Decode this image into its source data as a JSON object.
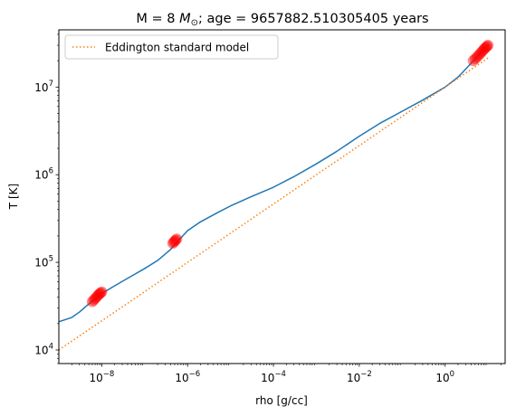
{
  "chart_data": {
    "type": "line",
    "title_prefix": "M = 8 ",
    "title_symbol": "M",
    "title_symbol_sub": "⊙",
    "title_suffix": "; age = 9657882.510305405 years",
    "xlabel": "rho [g/cc]",
    "ylabel": "T [K]",
    "xscale": "log",
    "yscale": "log",
    "xlim": [
      1e-09,
      25
    ],
    "ylim": [
      7000,
      45000000
    ],
    "grid": false,
    "legend_position": "top-left",
    "x_ticks": [
      {
        "value": 1e-08,
        "base": "10",
        "exp": "−8"
      },
      {
        "value": 1e-06,
        "base": "10",
        "exp": "−6"
      },
      {
        "value": 0.0001,
        "base": "10",
        "exp": "−4"
      },
      {
        "value": 0.01,
        "base": "10",
        "exp": "−2"
      },
      {
        "value": 1,
        "base": "10",
        "exp": "0"
      }
    ],
    "y_ticks": [
      {
        "value": 10000,
        "base": "10",
        "exp": "4"
      },
      {
        "value": 100000,
        "base": "10",
        "exp": "5"
      },
      {
        "value": 1000000,
        "base": "10",
        "exp": "6"
      },
      {
        "value": 10000000,
        "base": "10",
        "exp": "7"
      }
    ],
    "series": [
      {
        "kind": "line",
        "style": "solid",
        "color": "#1f77b4",
        "x": [
          1e-09,
          2e-09,
          3e-09,
          5e-09,
          7e-09,
          1e-08,
          2e-08,
          5e-08,
          1e-07,
          2e-07,
          4e-07,
          6e-07,
          1e-06,
          2e-06,
          5e-06,
          1e-05,
          3e-05,
          0.0001,
          0.0003,
          0.001,
          0.003,
          0.01,
          0.03,
          0.1,
          0.3,
          1,
          2,
          3,
          5,
          7,
          10
        ],
        "y": [
          21000,
          23500,
          27000,
          33500,
          38000,
          44000,
          54000,
          70000,
          85000,
          105000,
          140000,
          175000,
          230000,
          290000,
          370000,
          440000,
          560000,
          720000,
          950000,
          1330000,
          1850000,
          2750000,
          3850000,
          5300000,
          7100000,
          10000000,
          13000000,
          16000000,
          21000000,
          25000000,
          30000000
        ]
      },
      {
        "kind": "line",
        "style": "dotted",
        "color": "#ff7f0e",
        "name": "Eddington standard model",
        "x": [
          1e-09,
          1e-08,
          1e-07,
          1e-06,
          1e-05,
          0.0001,
          0.001,
          0.01,
          0.1,
          1,
          10
        ],
        "y": [
          10000,
          21500,
          46400,
          100000,
          215000,
          464000,
          1000000,
          2150000,
          4640000,
          10000000,
          21500000
        ]
      },
      {
        "kind": "scatter",
        "color": "#ff0000",
        "x": [
          6e-09,
          6.5e-09,
          7e-09,
          7.5e-09,
          8e-09,
          8.5e-09,
          9e-09,
          9.5e-09,
          1e-08,
          4.5e-07,
          4.8e-07,
          5e-07,
          5.3e-07,
          5.6e-07,
          4.5,
          5,
          5.5,
          6,
          6.5,
          7,
          7.5,
          8,
          8.5,
          9,
          9.5,
          10
        ],
        "y": [
          35500,
          37000,
          38500,
          40000,
          41500,
          43000,
          44000,
          45000,
          46000,
          165000,
          170000,
          175000,
          180000,
          185000,
          20000000,
          21000000,
          22000000,
          23000000,
          24000000,
          25000000,
          26000000,
          27000000,
          27800000,
          28500000,
          29300000,
          30000000
        ]
      }
    ]
  }
}
